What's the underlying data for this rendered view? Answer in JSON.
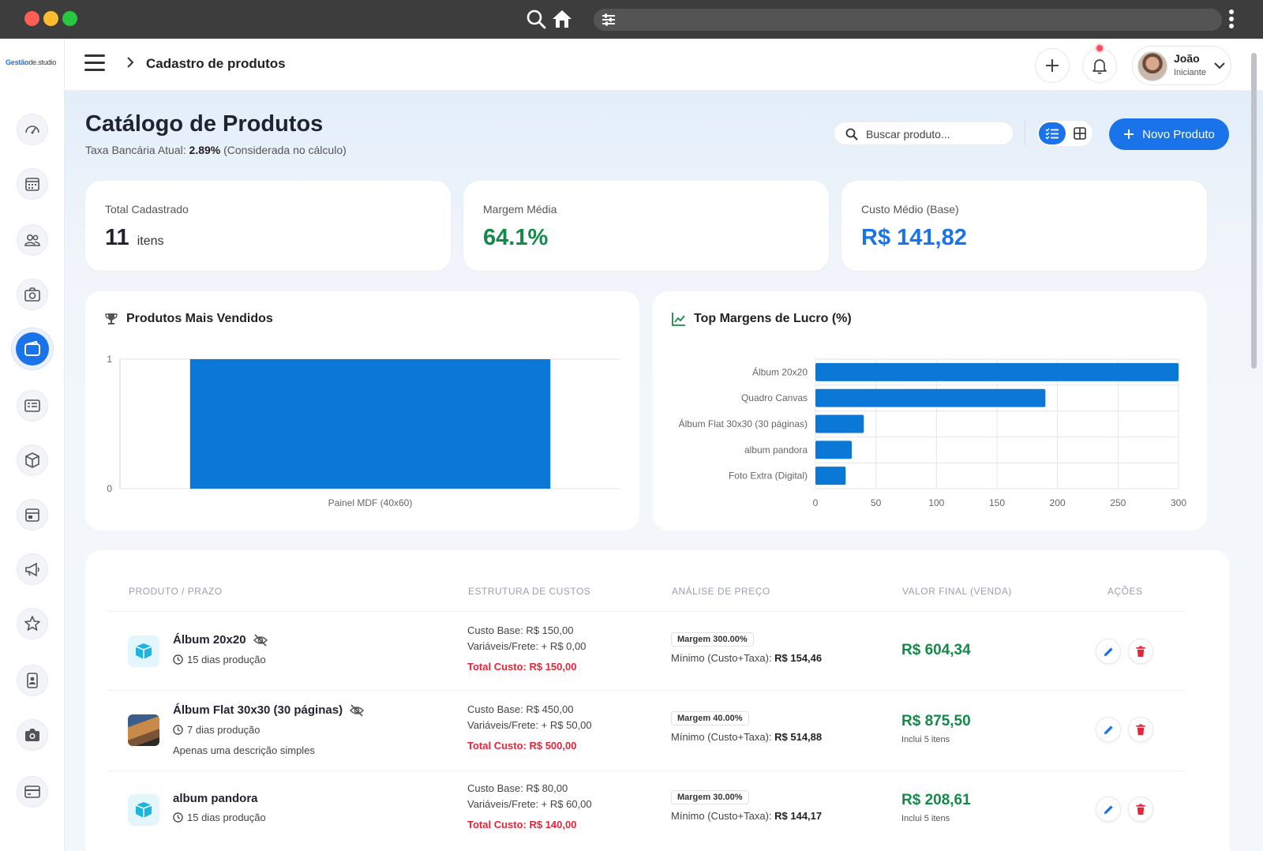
{
  "browser": {
    "icons": [
      "search-icon",
      "home-icon",
      "sliders-icon",
      "kebab-menu-icon"
    ]
  },
  "sidebar": {
    "logo": {
      "part1": "Gestão",
      "part2": "de.studio"
    },
    "items": [
      {
        "icon": "gauge-icon"
      },
      {
        "icon": "calendar-icon"
      },
      {
        "icon": "users-icon"
      },
      {
        "icon": "camera-icon"
      },
      {
        "icon": "wallet-icon",
        "active": true
      },
      {
        "icon": "id-card-icon"
      },
      {
        "icon": "box-icon"
      },
      {
        "icon": "agenda-icon"
      },
      {
        "icon": "megaphone-icon"
      },
      {
        "icon": "star-icon"
      },
      {
        "icon": "contact-book-icon"
      },
      {
        "icon": "camera-filled-icon"
      },
      {
        "icon": "credit-card-icon"
      }
    ]
  },
  "topbar": {
    "breadcrumb": "Cadastro de produtos",
    "user": {
      "name": "João",
      "role": "Iniciante"
    }
  },
  "header": {
    "title": "Catálogo de Produtos",
    "subtitle_prefix": "Taxa Bancária Atual:",
    "subtitle_rate": "2.89%",
    "subtitle_suffix": "(Considerada no cálculo)",
    "search_placeholder": "Buscar produto...",
    "new_button": "Novo Produto"
  },
  "stats": [
    {
      "label": "Total Cadastrado",
      "value": "11",
      "unit": "itens",
      "color": "#1f2430"
    },
    {
      "label": "Margem Média",
      "value": "64.1%",
      "color": "#148a48"
    },
    {
      "label": "Custo Médio (Base)",
      "value": "R$ 141,82",
      "color": "#1a73e8"
    }
  ],
  "chart_data": [
    {
      "type": "bar",
      "title": "Produtos Mais Vendidos",
      "categories": [
        "Painel MDF (40x60)"
      ],
      "values": [
        1
      ],
      "ylim": [
        0,
        1
      ],
      "yticks": [
        0,
        1
      ],
      "color": "#0b78d8"
    },
    {
      "type": "bar",
      "orientation": "horizontal",
      "title": "Top Margens de Lucro (%)",
      "categories": [
        "Álbum 20x20",
        "Quadro Canvas",
        "Álbum Flat 30x30 (30 páginas)",
        "album pandora",
        "Foto Extra (Digital)"
      ],
      "values": [
        300,
        190,
        40,
        30,
        25
      ],
      "xlim": [
        0,
        300
      ],
      "xticks": [
        0,
        50,
        100,
        150,
        200,
        250,
        300
      ],
      "color": "#0b78d8"
    }
  ],
  "table": {
    "headers": [
      "PRODUTO / PRAZO",
      "ESTRUTURA DE CUSTOS",
      "ANÁLISE DE PREÇO",
      "VALOR FINAL (VENDA)",
      "AÇÕES"
    ],
    "rows": [
      {
        "name": "Álbum 20x20",
        "hidden": true,
        "thumb": "box-icon",
        "time": "15 dias produção",
        "description": "",
        "cost_base": "Custo Base: R$ 150,00",
        "cost_var": "Variáveis/Frete: + R$ 0,00",
        "cost_total": "Total Custo: R$ 150,00",
        "margin": "Margem 300.00%",
        "min_label": "Mínimo (Custo+Taxa):",
        "min_value": "R$ 154,46",
        "price": "R$ 604,34",
        "price_note": ""
      },
      {
        "name": "Álbum Flat 30x30 (30 páginas)",
        "hidden": true,
        "thumb": "photo",
        "time": "7 dias produção",
        "description": "Apenas uma descrição simples",
        "cost_base": "Custo Base: R$ 450,00",
        "cost_var": "Variáveis/Frete: + R$ 50,00",
        "cost_total": "Total Custo: R$ 500,00",
        "margin": "Margem 40.00%",
        "min_label": "Mínimo (Custo+Taxa):",
        "min_value": "R$ 514,88",
        "price": "R$ 875,50",
        "price_note": "Inclui 5 itens"
      },
      {
        "name": "album pandora",
        "hidden": false,
        "thumb": "box-icon",
        "time": "15 dias produção",
        "description": "",
        "cost_base": "Custo Base: R$ 80,00",
        "cost_var": "Variáveis/Frete: + R$ 60,00",
        "cost_total": "Total Custo: R$ 140,00",
        "margin": "Margem 30.00%",
        "min_label": "Mínimo (Custo+Taxa):",
        "min_value": "R$ 144,17",
        "price": "R$ 208,61",
        "price_note": "Inclui 5 itens"
      }
    ]
  }
}
